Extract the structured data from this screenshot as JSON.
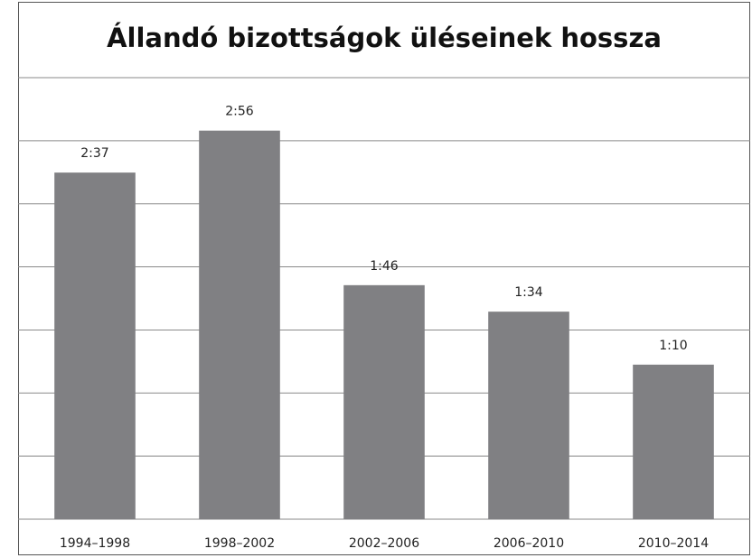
{
  "chart_data": {
    "type": "bar",
    "title": "Állandó bizottságok üléseinek hossza",
    "categories": [
      "1994–1998",
      "1998–2002",
      "2002–2006",
      "2006–2010",
      "2010–2014"
    ],
    "values": [
      157,
      176,
      106,
      94,
      70
    ],
    "value_labels": [
      "2:37",
      "2:56",
      "1:46",
      "1:34",
      "1:10"
    ],
    "color": "#808083",
    "ylim": [
      0,
      200
    ],
    "yticks": [
      0,
      28.57,
      57.14,
      85.71,
      114.29,
      142.86,
      171.43,
      200
    ],
    "grid": true
  }
}
